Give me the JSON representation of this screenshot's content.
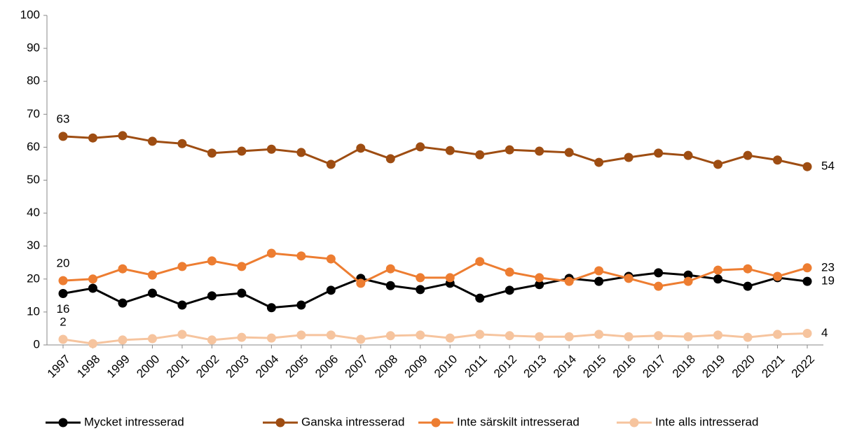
{
  "chart_data": {
    "type": "line",
    "categories": [
      "1997",
      "1998",
      "1999",
      "2000",
      "2001",
      "2002",
      "2003",
      "2004",
      "2005",
      "2006",
      "2007",
      "2008",
      "2009",
      "2010",
      "2011",
      "2012",
      "2013",
      "2014",
      "2015",
      "2016",
      "2017",
      "2018",
      "2019",
      "2020",
      "2021",
      "2022"
    ],
    "ylim": [
      0,
      100
    ],
    "yticks": [
      0,
      10,
      20,
      30,
      40,
      50,
      60,
      70,
      80,
      90,
      100
    ],
    "grid": false,
    "legend": "bottom",
    "series": [
      {
        "name": "Mycket intresserad",
        "color": "#000000",
        "values": [
          15.6,
          17.2,
          12.7,
          15.7,
          12.1,
          14.9,
          15.7,
          11.3,
          12.1,
          16.6,
          20.2,
          18,
          16.8,
          18.7,
          14.2,
          16.6,
          18.3,
          20.2,
          19.3,
          20.8,
          21.9,
          21.2,
          20,
          17.8,
          20.4,
          19.3
        ],
        "value_labels": [
          "16",
          null,
          null,
          null,
          null,
          null,
          null,
          null,
          null,
          null,
          null,
          null,
          null,
          null,
          null,
          null,
          null,
          null,
          null,
          null,
          null,
          null,
          null,
          null,
          null,
          "19"
        ]
      },
      {
        "name": "Ganska intresserad",
        "color": "#9e4d12",
        "values": [
          63.3,
          62.8,
          63.5,
          61.8,
          61.1,
          58.2,
          58.8,
          59.4,
          58.4,
          54.8,
          59.7,
          56.5,
          60.1,
          59,
          57.7,
          59.2,
          58.8,
          58.4,
          55.4,
          56.9,
          58.2,
          57.5,
          54.8,
          57.5,
          56.1,
          54.1
        ],
        "value_labels": [
          "63",
          null,
          null,
          null,
          null,
          null,
          null,
          null,
          null,
          null,
          null,
          null,
          null,
          null,
          null,
          null,
          null,
          null,
          null,
          null,
          null,
          null,
          null,
          null,
          null,
          "54"
        ]
      },
      {
        "name": "Inte särskilt intresserad",
        "color": "#ed7d31",
        "values": [
          19.5,
          20,
          23.1,
          21.2,
          23.8,
          25.5,
          23.8,
          27.8,
          27,
          26.1,
          18.7,
          23.1,
          20.4,
          20.4,
          25.3,
          22.1,
          20.4,
          19.3,
          22.5,
          20.2,
          17.8,
          19.3,
          22.7,
          23.1,
          20.8,
          23.4
        ],
        "value_labels": [
          "20",
          null,
          null,
          null,
          null,
          null,
          null,
          null,
          null,
          null,
          null,
          null,
          null,
          null,
          null,
          null,
          null,
          null,
          null,
          null,
          null,
          null,
          null,
          null,
          null,
          "23"
        ]
      },
      {
        "name": "Inte alls intresserad",
        "color": "#f6c49e",
        "values": [
          1.7,
          0.4,
          1.5,
          1.9,
          3.2,
          1.5,
          2.3,
          2.1,
          3,
          3,
          1.7,
          2.8,
          3,
          2.1,
          3.2,
          2.8,
          2.5,
          2.5,
          3.2,
          2.5,
          2.8,
          2.5,
          3,
          2.3,
          3.2,
          3.5
        ],
        "value_labels": [
          "2",
          null,
          null,
          null,
          null,
          null,
          null,
          null,
          null,
          null,
          null,
          null,
          null,
          null,
          null,
          null,
          null,
          null,
          null,
          null,
          null,
          null,
          null,
          null,
          null,
          "4"
        ]
      }
    ]
  }
}
